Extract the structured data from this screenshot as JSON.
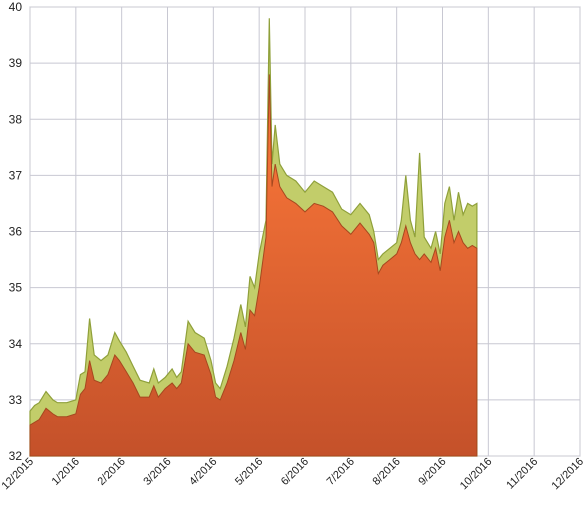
{
  "chart_data": {
    "type": "area",
    "grid": true,
    "ylim": [
      32,
      40
    ],
    "y_ticks": [
      "32",
      "33",
      "34",
      "35",
      "36",
      "37",
      "38",
      "39",
      "40"
    ],
    "x_ticks": [
      "12/2015",
      "1/2016",
      "2/2016",
      "3/2016",
      "4/2016",
      "5/2016",
      "6/2016",
      "7/2016",
      "8/2016",
      "9/2016",
      "10/2016",
      "11/2016",
      "12/2016"
    ],
    "colors": {
      "upper": "#c2cd6a",
      "upper_line": "#8fa03a",
      "lower_top": "#ff7a3a",
      "lower_bottom": "#c4512a",
      "lower_line": "#a6481f"
    },
    "series": [
      {
        "values": [
          [
            0,
            32.8,
            32.55
          ],
          [
            0.1,
            32.9,
            32.6
          ],
          [
            0.2,
            32.95,
            32.65
          ],
          [
            0.35,
            33.15,
            32.85
          ],
          [
            0.5,
            33.0,
            32.75
          ],
          [
            0.6,
            32.95,
            32.7
          ],
          [
            0.8,
            32.95,
            32.7
          ],
          [
            1.0,
            33.0,
            32.75
          ],
          [
            1.1,
            33.45,
            33.1
          ],
          [
            1.2,
            33.5,
            33.2
          ],
          [
            1.3,
            34.45,
            33.7
          ],
          [
            1.4,
            33.8,
            33.35
          ],
          [
            1.55,
            33.7,
            33.3
          ],
          [
            1.7,
            33.8,
            33.45
          ],
          [
            1.85,
            34.2,
            33.8
          ],
          [
            1.95,
            34.05,
            33.7
          ],
          [
            2.1,
            33.85,
            33.5
          ],
          [
            2.25,
            33.6,
            33.3
          ],
          [
            2.4,
            33.35,
            33.05
          ],
          [
            2.6,
            33.3,
            33.05
          ],
          [
            2.7,
            33.55,
            33.25
          ],
          [
            2.8,
            33.3,
            33.05
          ],
          [
            2.95,
            33.4,
            33.2
          ],
          [
            3.1,
            33.55,
            33.3
          ],
          [
            3.2,
            33.4,
            33.2
          ],
          [
            3.3,
            33.5,
            33.3
          ],
          [
            3.45,
            34.4,
            34.0
          ],
          [
            3.6,
            34.2,
            33.85
          ],
          [
            3.8,
            34.1,
            33.8
          ],
          [
            3.95,
            33.7,
            33.45
          ],
          [
            4.05,
            33.3,
            33.05
          ],
          [
            4.15,
            33.2,
            33.0
          ],
          [
            4.3,
            33.6,
            33.3
          ],
          [
            4.45,
            34.1,
            33.7
          ],
          [
            4.6,
            34.7,
            34.2
          ],
          [
            4.7,
            34.3,
            33.9
          ],
          [
            4.8,
            35.2,
            34.6
          ],
          [
            4.9,
            35.0,
            34.5
          ],
          [
            5.0,
            35.6,
            35.0
          ],
          [
            5.15,
            36.2,
            35.9
          ],
          [
            5.22,
            39.8,
            38.8
          ],
          [
            5.28,
            37.2,
            36.8
          ],
          [
            5.35,
            37.9,
            37.2
          ],
          [
            5.45,
            37.2,
            36.8
          ],
          [
            5.6,
            37.0,
            36.6
          ],
          [
            5.8,
            36.9,
            36.5
          ],
          [
            6.0,
            36.7,
            36.35
          ],
          [
            6.2,
            36.9,
            36.5
          ],
          [
            6.4,
            36.8,
            36.45
          ],
          [
            6.6,
            36.7,
            36.35
          ],
          [
            6.8,
            36.4,
            36.1
          ],
          [
            7.0,
            36.3,
            35.95
          ],
          [
            7.2,
            36.5,
            36.15
          ],
          [
            7.4,
            36.3,
            35.95
          ],
          [
            7.5,
            36.0,
            35.8
          ],
          [
            7.6,
            35.5,
            35.25
          ],
          [
            7.7,
            35.6,
            35.4
          ],
          [
            7.85,
            35.7,
            35.5
          ],
          [
            8.0,
            35.8,
            35.6
          ],
          [
            8.1,
            36.2,
            35.8
          ],
          [
            8.2,
            37.0,
            36.1
          ],
          [
            8.3,
            36.2,
            35.8
          ],
          [
            8.4,
            35.9,
            35.6
          ],
          [
            8.5,
            37.4,
            35.5
          ],
          [
            8.6,
            35.9,
            35.6
          ],
          [
            8.75,
            35.7,
            35.45
          ],
          [
            8.85,
            36.0,
            35.7
          ],
          [
            8.95,
            35.6,
            35.3
          ],
          [
            9.05,
            36.5,
            35.9
          ],
          [
            9.15,
            36.8,
            36.2
          ],
          [
            9.25,
            36.2,
            35.8
          ],
          [
            9.35,
            36.7,
            36.0
          ],
          [
            9.45,
            36.3,
            35.8
          ],
          [
            9.55,
            36.5,
            35.7
          ],
          [
            9.65,
            36.45,
            35.75
          ],
          [
            9.75,
            36.5,
            35.7
          ]
        ]
      }
    ]
  }
}
